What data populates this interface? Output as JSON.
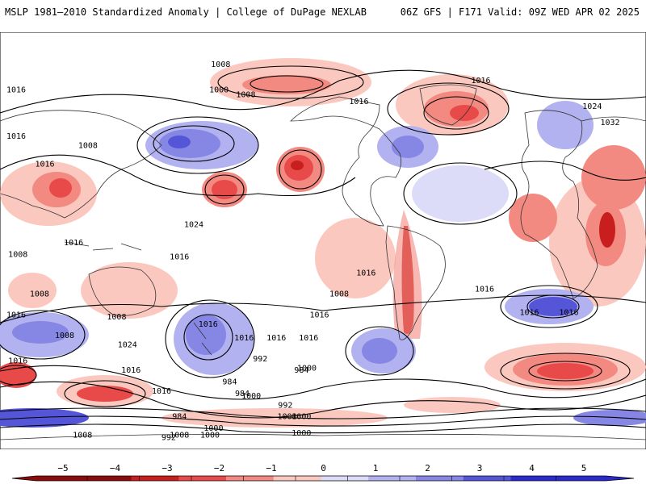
{
  "header": {
    "left_title": "MSLP 1981–2010 Standardized Anomaly | College of DuPage NEXLAB",
    "right_title": "06Z GFS | F171 Valid: 09Z WED APR 02 2025"
  },
  "colors": {
    "neg5": "#8b0a0a",
    "neg4": "#c81e1e",
    "neg3": "#e84a4a",
    "neg2": "#f38a82",
    "neg1": "#fbc8bf",
    "zero": "#ffffff",
    "pos1": "#dcdcf8",
    "pos2": "#b2b2f0",
    "pos3": "#8686e4",
    "pos4": "#5555d8",
    "pos5": "#2a2acc",
    "contour": "#000000",
    "coast": "#333333"
  },
  "colorbar": {
    "ticks": [
      "−5",
      "−4",
      "−3",
      "−2",
      "−1",
      "0",
      "1",
      "2",
      "3",
      "4",
      "5"
    ]
  },
  "isobar_labels": [
    {
      "text": "1008",
      "lon": -57,
      "lat": 75
    },
    {
      "text": "1000",
      "lon": -58,
      "lat": 64
    },
    {
      "text": "1008",
      "lon": -43,
      "lat": 62
    },
    {
      "text": "1016",
      "lon": 88,
      "lat": 68
    },
    {
      "text": "1016",
      "lon": -172,
      "lat": 64
    },
    {
      "text": "1016",
      "lon": -175,
      "lat": 44
    },
    {
      "text": "1008",
      "lon": -131,
      "lat": 40
    },
    {
      "text": "1024",
      "lon": 150,
      "lat": 57
    },
    {
      "text": "1032",
      "lon": 160,
      "lat": 50
    },
    {
      "text": "1016",
      "lon": -155,
      "lat": 32
    },
    {
      "text": "1016",
      "lon": -139,
      "lat": -2
    },
    {
      "text": "1024",
      "lon": -72,
      "lat": 6
    },
    {
      "text": "1016",
      "lon": -80,
      "lat": -8
    },
    {
      "text": "1008",
      "lon": -170,
      "lat": -7
    },
    {
      "text": "1008",
      "lon": -158,
      "lat": -24
    },
    {
      "text": "1016",
      "lon": -178,
      "lat": -33
    },
    {
      "text": "1008",
      "lon": -144,
      "lat": -42
    },
    {
      "text": "1016",
      "lon": 24,
      "lat": -15
    },
    {
      "text": "1008",
      "lon": 9,
      "lat": -24
    },
    {
      "text": "1016",
      "lon": 90,
      "lat": -22
    },
    {
      "text": "1016",
      "lon": 115,
      "lat": -32
    },
    {
      "text": "1016",
      "lon": 137,
      "lat": -32
    },
    {
      "text": "1016",
      "lon": -8,
      "lat": -43
    },
    {
      "text": "1008",
      "lon": -115,
      "lat": -34
    },
    {
      "text": "1016",
      "lon": -64,
      "lat": -37
    },
    {
      "text": "1024",
      "lon": -109,
      "lat": -46
    },
    {
      "text": "992",
      "lon": -35,
      "lat": -52
    },
    {
      "text": "984",
      "lon": -12,
      "lat": -57
    },
    {
      "text": "1000",
      "lon": -40,
      "lat": -68
    },
    {
      "text": "1016",
      "lon": -107,
      "lat": -57
    },
    {
      "text": "984",
      "lon": -45,
      "lat": -67
    },
    {
      "text": "992",
      "lon": -21,
      "lat": -72
    },
    {
      "text": "1008",
      "lon": -20,
      "lat": -77
    },
    {
      "text": "1000",
      "lon": -12,
      "lat": -77
    },
    {
      "text": "984",
      "lon": -80,
      "lat": -77
    },
    {
      "text": "992",
      "lon": -86,
      "lat": -86
    },
    {
      "text": "1016",
      "lon": -90,
      "lat": -66
    },
    {
      "text": "1008",
      "lon": -80,
      "lat": -85
    },
    {
      "text": "1000",
      "lon": -61,
      "lat": -82
    },
    {
      "text": "1000",
      "lon": -63,
      "lat": -85
    },
    {
      "text": "1000",
      "lon": -12,
      "lat": -84
    },
    {
      "text": "1008",
      "lon": -134,
      "lat": -85
    },
    {
      "text": "1016",
      "lon": -170,
      "lat": -53
    },
    {
      "text": "1016",
      "lon": -44,
      "lat": -43
    },
    {
      "text": "1000",
      "lon": -9,
      "lat": -56
    },
    {
      "text": "1016",
      "lon": -26,
      "lat": -43
    },
    {
      "text": "984",
      "lon": -52,
      "lat": -62
    },
    {
      "text": "1016",
      "lon": -2,
      "lat": -33
    },
    {
      "text": "1016",
      "lon": 20,
      "lat": 59
    }
  ]
}
